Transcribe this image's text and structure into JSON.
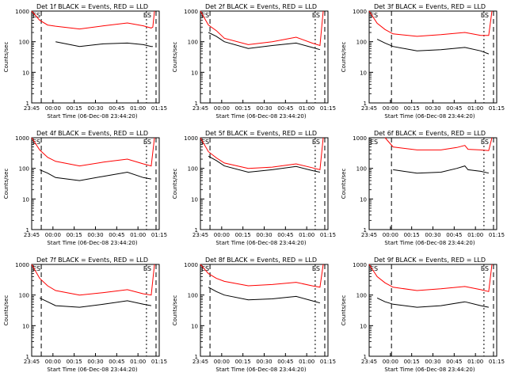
{
  "figure": {
    "x_tick_labels": [
      "23:45",
      "00:00",
      "00:15",
      "00:30",
      "00:45",
      "01:00",
      "01:15"
    ],
    "y_tick_labels": [
      "1",
      "10",
      "100",
      "1000"
    ],
    "ylabel": "Counts/sec",
    "xlabel": "Start Time (06-Dec-08 23:44:20)",
    "event_marker": "ES",
    "colors": {
      "background": "#ffffff",
      "axes": "#000000",
      "events": "#000000",
      "lld": "#ff0000"
    }
  },
  "chart_data": [
    {
      "type": "line",
      "title": "Det 1f BLACK = Events, RED = LLD",
      "xlabel": "Start Time (06-Dec-08 23:44:20)",
      "ylabel": "Counts/sec",
      "x_ticks": [
        "23:45",
        "00:00",
        "00:15",
        "00:30",
        "00:45",
        "01:00",
        "01:15"
      ],
      "y_ticks": [
        "1",
        "10",
        "100",
        "1000"
      ],
      "ylim": [
        1,
        1000
      ],
      "y_scale": "log",
      "x_minutes": [
        0,
        5,
        10,
        15,
        30,
        45,
        60,
        70,
        75,
        76,
        77
      ],
      "series": [
        {
          "name": "Events",
          "color": "#000000",
          "values": [
            null,
            null,
            null,
            100,
            70,
            85,
            90,
            80,
            70,
            70,
            null
          ]
        },
        {
          "name": "LLD",
          "color": "#ff0000",
          "values": [
            1000,
            500,
            350,
            320,
            260,
            330,
            410,
            330,
            280,
            300,
            1000
          ]
        }
      ]
    },
    {
      "type": "line",
      "title": "Det 2f BLACK = Events, RED = LLD",
      "xlabel": "Start Time (06-Dec-08 23:44:20)",
      "ylabel": "Counts/sec",
      "x_ticks": [
        "23:45",
        "00:00",
        "00:15",
        "00:30",
        "00:45",
        "01:00",
        "01:15"
      ],
      "y_ticks": [
        "1",
        "10",
        "100",
        "1000"
      ],
      "ylim": [
        1,
        1000
      ],
      "y_scale": "log",
      "x_minutes": [
        0,
        5,
        10,
        15,
        30,
        45,
        60,
        70,
        75,
        77
      ],
      "series": [
        {
          "name": "Events",
          "color": "#000000",
          "values": [
            null,
            200,
            150,
            100,
            60,
            75,
            90,
            65,
            55,
            null
          ]
        },
        {
          "name": "LLD",
          "color": "#ff0000",
          "values": [
            1000,
            350,
            230,
            130,
            80,
            100,
            140,
            90,
            75,
            1000
          ]
        }
      ]
    },
    {
      "type": "line",
      "title": "Det 3f BLACK = Events, RED = LLD",
      "xlabel": "Start Time (06-Dec-08 23:44:20)",
      "ylabel": "Counts/sec",
      "x_ticks": [
        "23:45",
        "00:00",
        "00:15",
        "00:30",
        "00:45",
        "01:00",
        "01:15"
      ],
      "y_ticks": [
        "1",
        "10",
        "100",
        "1000"
      ],
      "ylim": [
        1,
        1000
      ],
      "y_scale": "log",
      "x_minutes": [
        0,
        5,
        10,
        15,
        30,
        45,
        60,
        70,
        75,
        77
      ],
      "series": [
        {
          "name": "Events",
          "color": "#000000",
          "values": [
            null,
            120,
            90,
            70,
            50,
            55,
            65,
            50,
            40,
            null
          ]
        },
        {
          "name": "LLD",
          "color": "#ff0000",
          "values": [
            1000,
            400,
            250,
            180,
            150,
            170,
            200,
            160,
            160,
            1000
          ]
        }
      ]
    },
    {
      "type": "line",
      "title": "Det 4f BLACK = Events, RED = LLD",
      "xlabel": "Start Time (06-Dec-08 23:44:20)",
      "ylabel": "Counts/sec",
      "x_ticks": [
        "23:45",
        "00:00",
        "00:15",
        "00:30",
        "00:45",
        "01:00",
        "01:15"
      ],
      "y_ticks": [
        "1",
        "10",
        "100",
        "1000"
      ],
      "ylim": [
        1,
        1000
      ],
      "y_scale": "log",
      "x_minutes": [
        0,
        5,
        10,
        15,
        30,
        45,
        60,
        70,
        75,
        77
      ],
      "series": [
        {
          "name": "Events",
          "color": "#000000",
          "values": [
            null,
            90,
            70,
            50,
            40,
            55,
            75,
            50,
            45,
            null
          ]
        },
        {
          "name": "LLD",
          "color": "#ff0000",
          "values": [
            1000,
            400,
            230,
            170,
            120,
            160,
            200,
            140,
            120,
            1000
          ]
        }
      ]
    },
    {
      "type": "line",
      "title": "Det 5f BLACK = Events, RED = LLD",
      "xlabel": "Start Time (06-Dec-08 23:44:20)",
      "ylabel": "Counts/sec",
      "x_ticks": [
        "23:45",
        "00:00",
        "00:15",
        "00:30",
        "00:45",
        "01:00",
        "01:15"
      ],
      "y_ticks": [
        "1",
        "10",
        "100",
        "1000"
      ],
      "ylim": [
        1,
        1000
      ],
      "y_scale": "log",
      "x_minutes": [
        0,
        5,
        10,
        15,
        30,
        45,
        60,
        70,
        75,
        77
      ],
      "series": [
        {
          "name": "Events",
          "color": "#000000",
          "values": [
            null,
            250,
            180,
            120,
            75,
            90,
            115,
            85,
            75,
            null
          ]
        },
        {
          "name": "LLD",
          "color": "#ff0000",
          "values": [
            1000,
            350,
            220,
            150,
            100,
            110,
            140,
            105,
            90,
            1000
          ]
        }
      ]
    },
    {
      "type": "line",
      "title": "Det 6f BLACK = Events, RED = LLD",
      "xlabel": "Start Time (06-Dec-08 23:44:20)",
      "ylabel": "Counts/sec",
      "x_ticks": [
        "23:45",
        "00:00",
        "00:15",
        "00:30",
        "00:45",
        "01:00",
        "01:15"
      ],
      "y_ticks": [
        "1",
        "10",
        "100",
        "1000"
      ],
      "ylim": [
        1,
        1000
      ],
      "y_scale": "log",
      "x_minutes": [
        10,
        15,
        30,
        45,
        55,
        60,
        62,
        70,
        75,
        77
      ],
      "series": [
        {
          "name": "Events",
          "color": "#000000",
          "values": [
            null,
            90,
            70,
            75,
            100,
            120,
            90,
            80,
            70,
            null
          ]
        },
        {
          "name": "LLD",
          "color": "#ff0000",
          "values": [
            1000,
            500,
            400,
            400,
            480,
            560,
            420,
            400,
            380,
            1000
          ]
        }
      ]
    },
    {
      "type": "line",
      "title": "Det 7f BLACK = Events, RED = LLD",
      "xlabel": "Start Time (06-Dec-08 23:44:20)",
      "ylabel": "Counts/sec",
      "x_ticks": [
        "23:45",
        "00:00",
        "00:15",
        "00:30",
        "00:45",
        "01:00",
        "01:15"
      ],
      "y_ticks": [
        "1",
        "10",
        "100",
        "1000"
      ],
      "ylim": [
        1,
        1000
      ],
      "y_scale": "log",
      "x_minutes": [
        0,
        5,
        10,
        15,
        30,
        45,
        60,
        70,
        75,
        77
      ],
      "series": [
        {
          "name": "Events",
          "color": "#000000",
          "values": [
            null,
            80,
            60,
            45,
            40,
            50,
            65,
            50,
            45,
            null
          ]
        },
        {
          "name": "LLD",
          "color": "#ff0000",
          "values": [
            1000,
            350,
            200,
            140,
            100,
            120,
            150,
            110,
            100,
            1000
          ]
        }
      ]
    },
    {
      "type": "line",
      "title": "Det 8f BLACK = Events, RED = LLD",
      "xlabel": "Start Time (06-Dec-08 23:44:20)",
      "ylabel": "Counts/sec",
      "x_ticks": [
        "23:45",
        "00:00",
        "00:15",
        "00:30",
        "00:45",
        "01:00",
        "01:15"
      ],
      "y_ticks": [
        "1",
        "10",
        "100",
        "1000"
      ],
      "ylim": [
        1,
        1000
      ],
      "y_scale": "log",
      "x_minutes": [
        0,
        5,
        10,
        15,
        30,
        45,
        60,
        70,
        75,
        77
      ],
      "series": [
        {
          "name": "Events",
          "color": "#000000",
          "values": [
            null,
            180,
            130,
            100,
            70,
            75,
            90,
            65,
            55,
            null
          ]
        },
        {
          "name": "LLD",
          "color": "#ff0000",
          "values": [
            1000,
            500,
            350,
            280,
            200,
            220,
            260,
            200,
            180,
            1000
          ]
        }
      ]
    },
    {
      "type": "line",
      "title": "Det 9f BLACK = Events, RED = LLD",
      "xlabel": "Start Time (06-Dec-08 23:44:20)",
      "ylabel": "Counts/sec",
      "x_ticks": [
        "23:45",
        "00:00",
        "00:15",
        "00:30",
        "00:45",
        "01:00",
        "01:15"
      ],
      "y_ticks": [
        "1",
        "10",
        "100",
        "1000"
      ],
      "ylim": [
        1,
        1000
      ],
      "y_scale": "log",
      "x_minutes": [
        0,
        5,
        10,
        15,
        30,
        45,
        60,
        70,
        75,
        77
      ],
      "series": [
        {
          "name": "Events",
          "color": "#000000",
          "values": [
            null,
            80,
            60,
            50,
            40,
            45,
            60,
            45,
            40,
            null
          ]
        },
        {
          "name": "LLD",
          "color": "#ff0000",
          "values": [
            1000,
            400,
            250,
            180,
            140,
            160,
            190,
            150,
            130,
            1000
          ]
        }
      ]
    }
  ]
}
